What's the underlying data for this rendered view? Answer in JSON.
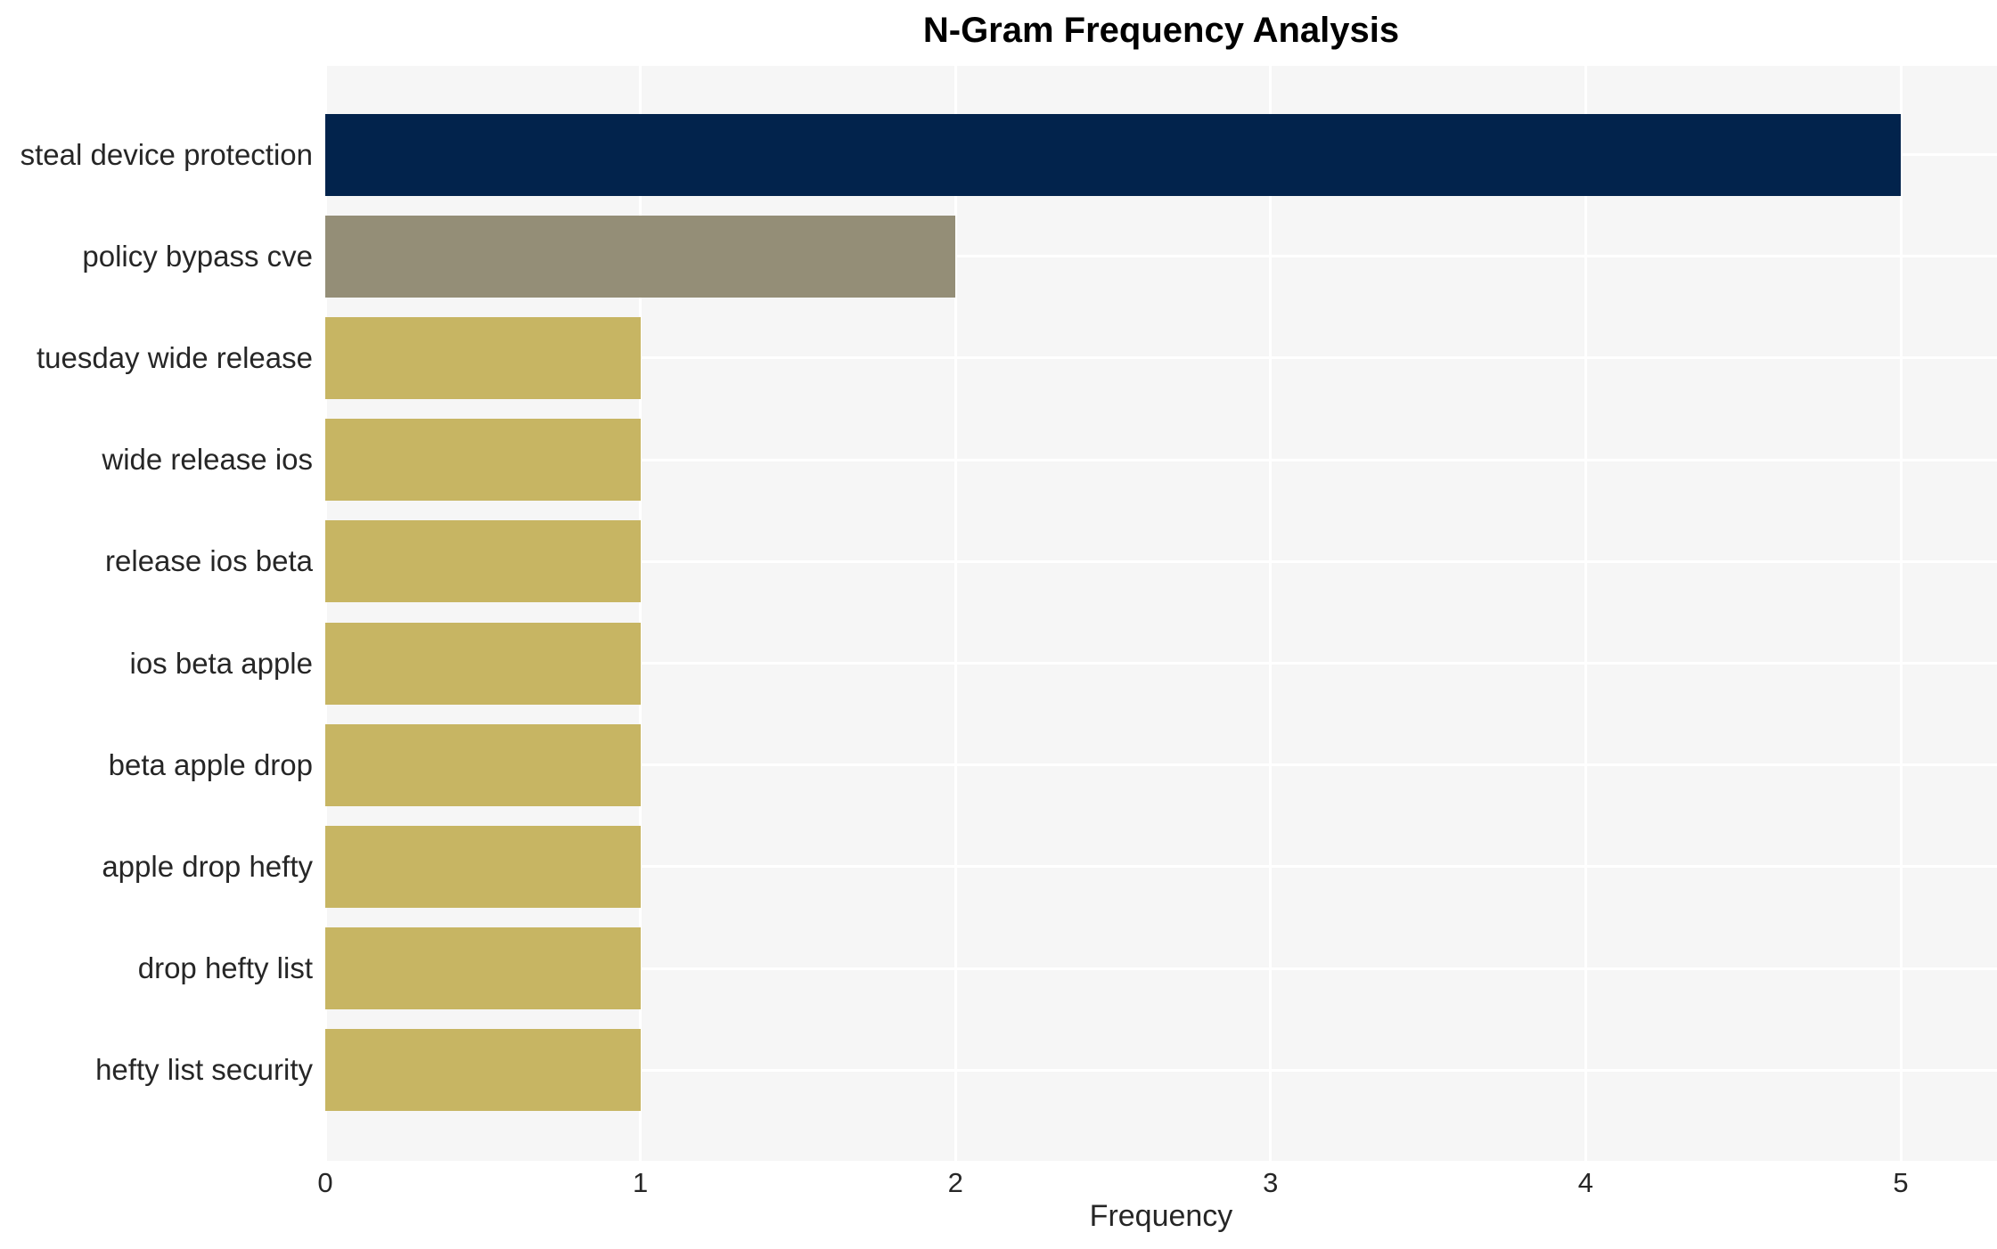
{
  "page": {
    "background": "#ffffff"
  },
  "chart_data": {
    "type": "bar",
    "orientation": "horizontal",
    "title": "N-Gram Frequency Analysis",
    "xlabel": "Frequency",
    "ylabel": "",
    "categories": [
      "steal device protection",
      "policy bypass cve",
      "tuesday wide release",
      "wide release ios",
      "release ios beta",
      "ios beta apple",
      "beta apple drop",
      "apple drop hefty",
      "drop hefty list",
      "hefty list security"
    ],
    "values": [
      5,
      2,
      1,
      1,
      1,
      1,
      1,
      1,
      1,
      1
    ],
    "bar_colors": [
      "#02234c",
      "#948e77",
      "#c7b563",
      "#c7b563",
      "#c7b563",
      "#c7b563",
      "#c7b563",
      "#c7b563",
      "#c7b563",
      "#c7b563"
    ],
    "xticks": [
      "0",
      "1",
      "2",
      "3",
      "4",
      "5"
    ],
    "xlim": [
      0,
      5.3
    ],
    "grid": true,
    "legend": null,
    "plot_background": "#f6f6f6",
    "grid_color": "#ffffff",
    "text_color": "#262626",
    "title_color": "#000000"
  }
}
